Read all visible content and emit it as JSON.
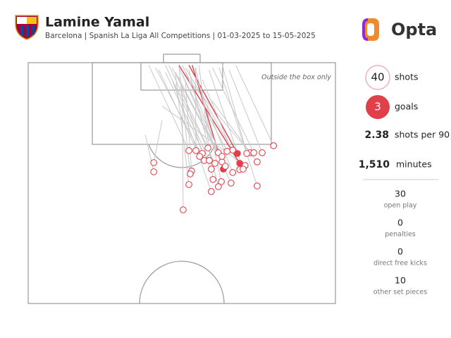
{
  "chart_data": {
    "type": "shotmap",
    "title": "Lamine Yamal",
    "subtitle": "Barcelona | Spanish La Liga All Competitions | 01-03-2025 to 15-05-2025",
    "note": "Outside the box only",
    "brand": "Opta",
    "shot_color": "#e0404a",
    "x": [
      73.3,
      69.9,
      66.3,
      67.4,
      61.1,
      59.4,
      62.5,
      56.8,
      53.7,
      50.1,
      52.0,
      65.3,
      68.4,
      64.8,
      63.2,
      63.2,
      57.9,
      58.3,
      54.7,
      52.6,
      48.8,
      48.4,
      48.0,
      46.3,
      37.5,
      37.5,
      55.2,
      57.7,
      56.8,
      54.7,
      68.4,
      60.6,
      64.2,
      48.0,
      55.8,
      58.9,
      54.1,
      51.2,
      57.9,
      61.1
    ],
    "y": [
      34.5,
      37.4,
      37.4,
      37.4,
      36.3,
      36.8,
      37.7,
      37.4,
      35.4,
      36.5,
      37.7,
      37.7,
      41.2,
      42.7,
      41.8,
      44.4,
      41.2,
      44.2,
      44.2,
      40.6,
      45.0,
      46.2,
      50.6,
      61.1,
      41.5,
      45.3,
      48.5,
      49.4,
      51.5,
      53.5,
      51.2,
      50.0,
      44.2,
      36.5,
      41.8,
      43.0,
      40.6,
      38.9,
      38.9,
      45.6
    ],
    "end_x": [
      62,
      60,
      49,
      55,
      47,
      46,
      48,
      44,
      42,
      50,
      45,
      58,
      55,
      40,
      45,
      52,
      43,
      49,
      41,
      38,
      47,
      45,
      44,
      46,
      40,
      35,
      51,
      50,
      48,
      43,
      57,
      46,
      54,
      36,
      44,
      47,
      41,
      39,
      45,
      50
    ],
    "end_y": [
      1,
      3,
      9,
      2,
      2,
      1,
      1,
      4,
      1,
      2,
      6,
      1,
      16,
      18,
      1,
      7,
      2,
      1,
      4,
      2,
      8,
      1,
      5,
      10,
      24,
      30,
      1,
      2,
      3,
      7,
      2,
      5,
      3,
      1,
      9,
      4,
      1,
      3,
      2,
      6
    ],
    "goal": [
      false,
      false,
      false,
      false,
      false,
      false,
      true,
      false,
      false,
      false,
      false,
      false,
      false,
      false,
      true,
      false,
      false,
      true,
      false,
      false,
      false,
      false,
      false,
      false,
      false,
      false,
      false,
      false,
      false,
      false,
      false,
      false,
      false,
      false,
      false,
      false,
      false,
      false,
      false,
      false
    ],
    "stats": [
      {
        "value": "40",
        "label": "shots"
      },
      {
        "value": "3",
        "label": "goals"
      },
      {
        "value": "2.38",
        "label": "shots per 90"
      },
      {
        "value": "1,510",
        "label": "minutes"
      }
    ],
    "breakdown": [
      {
        "value": "30",
        "label": "open play"
      },
      {
        "value": "0",
        "label": "penalties"
      },
      {
        "value": "0",
        "label": "direct free kicks"
      },
      {
        "value": "10",
        "label": "other set pieces"
      }
    ]
  }
}
